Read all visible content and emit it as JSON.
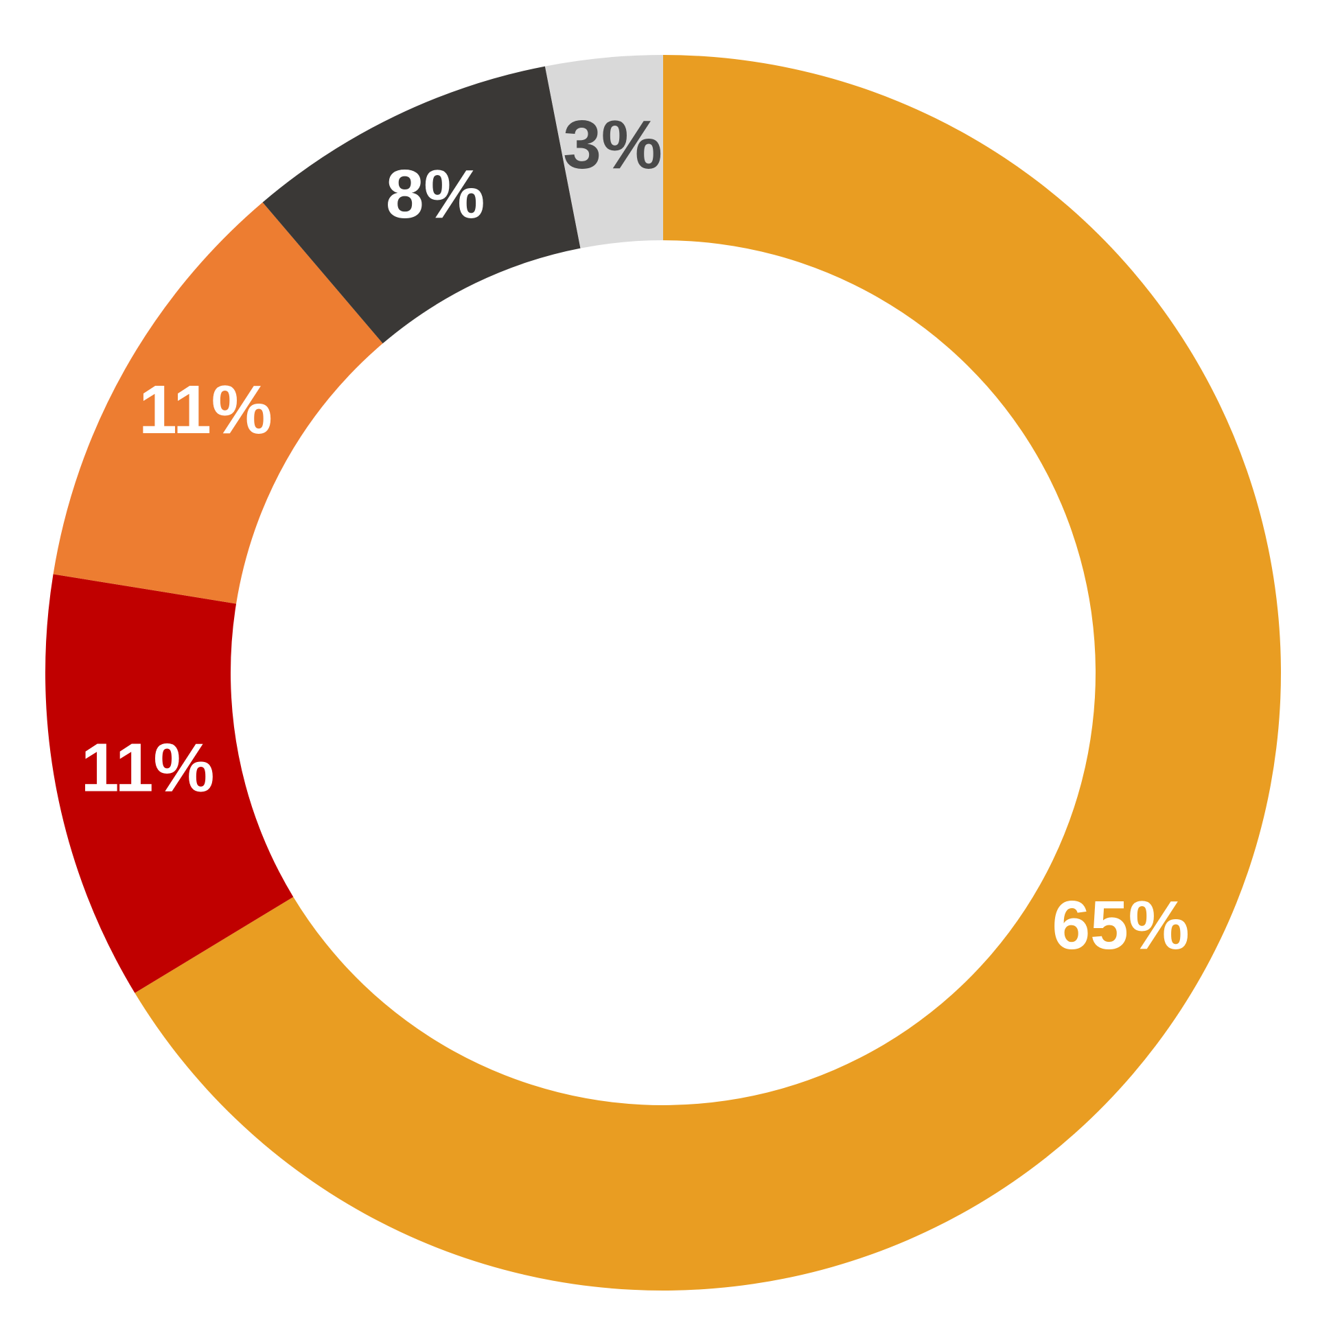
{
  "chart_data": {
    "type": "donut",
    "categories": [
      null,
      null,
      null,
      null,
      null
    ],
    "values": [
      65,
      11,
      11,
      8,
      3
    ],
    "value_labels": [
      "65%",
      "11%",
      "11%",
      "8%",
      "3%"
    ],
    "colors": [
      "#E99D22",
      "#C00000",
      "#ED7D31",
      "#3A3836",
      "#D9D9D9"
    ],
    "label_colors": [
      "#ffffff",
      "#ffffff",
      "#ffffff",
      "#ffffff",
      "#4a4a4a"
    ]
  }
}
